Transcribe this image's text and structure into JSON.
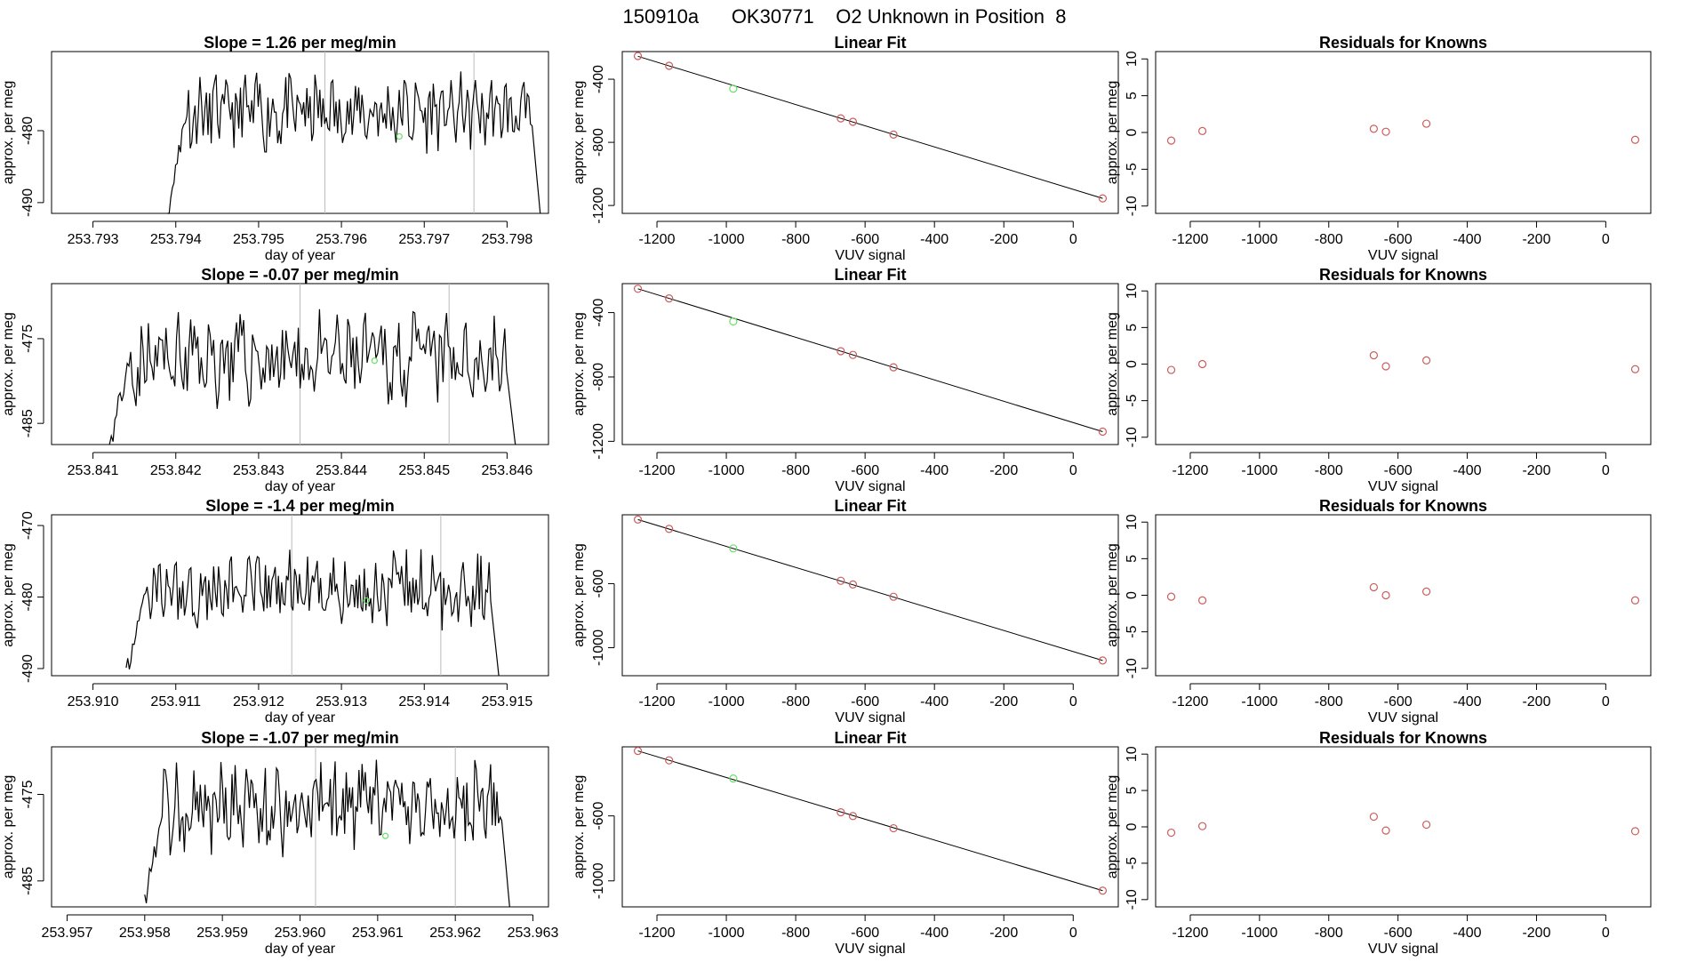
{
  "page_title": "150910a      OK30771    O2 Unknown in Position  8",
  "colors": {
    "known_point": "#cd5c5c",
    "unknown_point": "#66e066",
    "line": "#000000",
    "marker_line": "#bbbbbb"
  },
  "chart_data": [
    {
      "type": "line",
      "name": "timeseries-1",
      "title": "Slope =  1.26  per meg/min",
      "xlabel": "day of year",
      "ylabel": "approx. per meg",
      "xlim": [
        253.7925,
        253.7985
      ],
      "ylim": [
        -491.5,
        -469
      ],
      "xticks": [
        "253.793",
        "253.794",
        "253.795",
        "253.796",
        "253.797",
        "253.798"
      ],
      "yticks": [
        "-490",
        "-480"
      ],
      "start": 253.7939,
      "end": 253.7984,
      "level": -477.5,
      "seed": 11,
      "vlines": [
        253.7958,
        253.7976
      ],
      "unknown_point": [
        253.7967,
        -480.8
      ]
    },
    {
      "type": "line",
      "name": "timeseries-2",
      "title": "Slope =  -0.07  per meg/min",
      "xlabel": "day of year",
      "ylabel": "approx. per meg",
      "xlim": [
        253.8405,
        253.8465
      ],
      "ylim": [
        -487.5,
        -468.5
      ],
      "xticks": [
        "253.841",
        "253.842",
        "253.843",
        "253.844",
        "253.845",
        "253.846"
      ],
      "yticks": [
        "-485",
        "-475"
      ],
      "start": 253.8412,
      "end": 253.8461,
      "level": -477.5,
      "seed": 23,
      "vlines": [
        253.8435,
        253.8453
      ],
      "unknown_point": [
        253.8444,
        -477.6
      ]
    },
    {
      "type": "line",
      "name": "timeseries-3",
      "title": "Slope =  -1.4  per meg/min",
      "xlabel": "day of year",
      "ylabel": "approx. per meg",
      "xlim": [
        253.9095,
        253.9155
      ],
      "ylim": [
        -491,
        -468.5
      ],
      "xticks": [
        "253.910",
        "253.911",
        "253.912",
        "253.913",
        "253.914",
        "253.915"
      ],
      "yticks": [
        "-490",
        "-480",
        "-470"
      ],
      "start": 253.9104,
      "end": 253.9149,
      "level": -479,
      "seed": 37,
      "vlines": [
        253.9124,
        253.9142
      ],
      "unknown_point": [
        253.9133,
        -480.5
      ]
    },
    {
      "type": "line",
      "name": "timeseries-4",
      "title": "Slope =  -1.07  per meg/min",
      "xlabel": "day of year",
      "ylabel": "approx. per meg",
      "xlim": [
        253.9568,
        253.9632
      ],
      "ylim": [
        -488,
        -469.5
      ],
      "xticks": [
        "253.957",
        "253.958",
        "253.959",
        "253.960",
        "253.961",
        "253.962",
        "253.963"
      ],
      "yticks": [
        "-485",
        "-475"
      ],
      "start": 253.958,
      "end": 253.9627,
      "level": -476.5,
      "seed": 53,
      "vlines": [
        253.9602,
        253.962
      ],
      "unknown_point": [
        253.9611,
        -479.8
      ]
    },
    {
      "type": "scatter",
      "name": "linear-fit-1",
      "title": "Linear Fit",
      "xlabel": "VUV signal",
      "ylabel": "approx. per meg",
      "xlim": [
        -1300,
        130
      ],
      "ylim": [
        -1250,
        -225
      ],
      "xticks": [
        "-1200",
        "-1000",
        "-800",
        "-600",
        "-400",
        "-200",
        "0"
      ],
      "yticks": [
        "-1200",
        "-800",
        "-400"
      ],
      "fit_line": [
        [
          -1255,
          -255
        ],
        [
          85,
          -1155
        ]
      ],
      "knowns": [
        [
          -1255,
          -253
        ],
        [
          -1165,
          -315
        ],
        [
          -670,
          -648
        ],
        [
          -635,
          -670
        ],
        [
          -518,
          -751
        ],
        [
          85,
          -1155
        ]
      ],
      "unknown": [
        [
          -980,
          -460
        ]
      ]
    },
    {
      "type": "scatter",
      "name": "linear-fit-2",
      "title": "Linear Fit",
      "xlabel": "VUV signal",
      "ylabel": "approx. per meg",
      "xlim": [
        -1300,
        130
      ],
      "ylim": [
        -1220,
        -220
      ],
      "xticks": [
        "-1200",
        "-1000",
        "-800",
        "-600",
        "-400",
        "-200",
        "0"
      ],
      "yticks": [
        "-1200",
        "-800",
        "-400"
      ],
      "fit_line": [
        [
          -1255,
          -252
        ],
        [
          85,
          -1140
        ]
      ],
      "knowns": [
        [
          -1255,
          -252
        ],
        [
          -1165,
          -312
        ],
        [
          -670,
          -640
        ],
        [
          -635,
          -663
        ],
        [
          -518,
          -740
        ],
        [
          85,
          -1140
        ]
      ],
      "unknown": [
        [
          -980,
          -455
        ]
      ]
    },
    {
      "type": "scatter",
      "name": "linear-fit-3",
      "title": "Linear Fit",
      "xlabel": "VUV signal",
      "ylabel": "approx. per meg",
      "xlim": [
        -1300,
        130
      ],
      "ylim": [
        -1175,
        -170
      ],
      "xticks": [
        "-1200",
        "-1000",
        "-800",
        "-600",
        "-400",
        "-200",
        "0"
      ],
      "yticks": [
        "-1000",
        "-600"
      ],
      "fit_line": [
        [
          -1255,
          -200
        ],
        [
          85,
          -1080
        ]
      ],
      "knowns": [
        [
          -1255,
          -200
        ],
        [
          -1165,
          -258
        ],
        [
          -670,
          -582
        ],
        [
          -635,
          -605
        ],
        [
          -518,
          -682
        ],
        [
          85,
          -1080
        ]
      ],
      "unknown": [
        [
          -980,
          -380
        ]
      ]
    },
    {
      "type": "scatter",
      "name": "linear-fit-4",
      "title": "Linear Fit",
      "xlabel": "VUV signal",
      "ylabel": "approx. per meg",
      "xlim": [
        -1300,
        130
      ],
      "ylim": [
        -1160,
        -175
      ],
      "xticks": [
        "-1200",
        "-1000",
        "-800",
        "-600",
        "-400",
        "-200",
        "0"
      ],
      "yticks": [
        "-1000",
        "-600"
      ],
      "fit_line": [
        [
          -1255,
          -200
        ],
        [
          85,
          -1060
        ]
      ],
      "knowns": [
        [
          -1255,
          -200
        ],
        [
          -1165,
          -258
        ],
        [
          -670,
          -578
        ],
        [
          -635,
          -601
        ],
        [
          -518,
          -676
        ],
        [
          85,
          -1060
        ]
      ],
      "unknown": [
        [
          -980,
          -370
        ]
      ]
    },
    {
      "type": "scatter",
      "name": "residuals-1",
      "title": "Residuals for Knowns",
      "xlabel": "VUV signal",
      "ylabel": "approx. per meg",
      "xlim": [
        -1300,
        130
      ],
      "ylim": [
        -11,
        11
      ],
      "xticks": [
        "-1200",
        "-1000",
        "-800",
        "-600",
        "-400",
        "-200",
        "0"
      ],
      "yticks": [
        "-10",
        "-5",
        "0",
        "5",
        "10"
      ],
      "knowns": [
        [
          -1255,
          -1.1
        ],
        [
          -1165,
          0.2
        ],
        [
          -670,
          0.5
        ],
        [
          -635,
          0.1
        ],
        [
          -518,
          1.2
        ],
        [
          85,
          -1.0
        ]
      ]
    },
    {
      "type": "scatter",
      "name": "residuals-2",
      "title": "Residuals for Knowns",
      "xlabel": "VUV signal",
      "ylabel": "approx. per meg",
      "xlim": [
        -1300,
        130
      ],
      "ylim": [
        -11,
        11
      ],
      "xticks": [
        "-1200",
        "-1000",
        "-800",
        "-600",
        "-400",
        "-200",
        "0"
      ],
      "yticks": [
        "-10",
        "-5",
        "0",
        "5",
        "10"
      ],
      "knowns": [
        [
          -1255,
          -0.8
        ],
        [
          -1165,
          0.0
        ],
        [
          -670,
          1.2
        ],
        [
          -635,
          -0.3
        ],
        [
          -518,
          0.5
        ],
        [
          85,
          -0.7
        ]
      ]
    },
    {
      "type": "scatter",
      "name": "residuals-3",
      "title": "Residuals for Knowns",
      "xlabel": "VUV signal",
      "ylabel": "approx. per meg",
      "xlim": [
        -1300,
        130
      ],
      "ylim": [
        -11,
        11
      ],
      "xticks": [
        "-1200",
        "-1000",
        "-800",
        "-600",
        "-400",
        "-200",
        "0"
      ],
      "yticks": [
        "-10",
        "-5",
        "0",
        "5",
        "10"
      ],
      "knowns": [
        [
          -1255,
          -0.2
        ],
        [
          -1165,
          -0.7
        ],
        [
          -670,
          1.1
        ],
        [
          -635,
          0.0
        ],
        [
          -518,
          0.5
        ],
        [
          85,
          -0.7
        ]
      ]
    },
    {
      "type": "scatter",
      "name": "residuals-4",
      "title": "Residuals for Knowns",
      "xlabel": "VUV signal",
      "ylabel": "approx. per meg",
      "xlim": [
        -1300,
        130
      ],
      "ylim": [
        -11,
        11
      ],
      "xticks": [
        "-1200",
        "-1000",
        "-800",
        "-600",
        "-400",
        "-200",
        "0"
      ],
      "yticks": [
        "-10",
        "-5",
        "0",
        "5",
        "10"
      ],
      "knowns": [
        [
          -1255,
          -0.8
        ],
        [
          -1165,
          0.1
        ],
        [
          -670,
          1.4
        ],
        [
          -635,
          -0.5
        ],
        [
          -518,
          0.3
        ],
        [
          85,
          -0.6
        ]
      ]
    }
  ]
}
